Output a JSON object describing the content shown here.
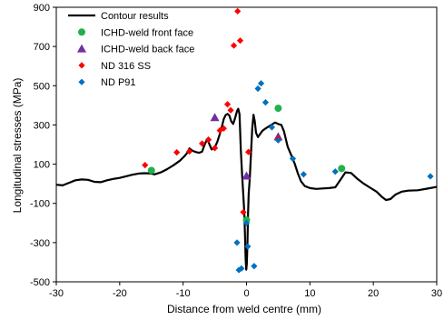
{
  "chart_data": {
    "type": "scatter",
    "xlabel": "Distance from weld centre (mm)",
    "ylabel": "Longitudinal stresses (MPa)",
    "xlim": [
      -30,
      30
    ],
    "ylim": [
      -500,
      900
    ],
    "x_ticks": [
      -30,
      -20,
      -10,
      0,
      10,
      20,
      30
    ],
    "y_ticks": [
      -500,
      -300,
      -100,
      100,
      300,
      500,
      700,
      900
    ],
    "grid": false,
    "legend_position": "top-left",
    "series": [
      {
        "name": "Contour results",
        "kind": "line",
        "color": "#000000",
        "points": [
          [
            -30,
            -5
          ],
          [
            -29,
            -8
          ],
          [
            -28,
            5
          ],
          [
            -27,
            18
          ],
          [
            -26,
            22
          ],
          [
            -25,
            20
          ],
          [
            -24,
            10
          ],
          [
            -23,
            8
          ],
          [
            -22,
            18
          ],
          [
            -21,
            25
          ],
          [
            -20,
            30
          ],
          [
            -19,
            38
          ],
          [
            -18,
            46
          ],
          [
            -17,
            52
          ],
          [
            -16,
            54
          ],
          [
            -15,
            52
          ],
          [
            -14.5,
            48
          ],
          [
            -13.5,
            58
          ],
          [
            -12.5,
            75
          ],
          [
            -11.5,
            95
          ],
          [
            -10.5,
            118
          ],
          [
            -9.8,
            140
          ],
          [
            -9.3,
            160
          ],
          [
            -9.0,
            180
          ],
          [
            -8.5,
            168
          ],
          [
            -8.0,
            162
          ],
          [
            -7.5,
            158
          ],
          [
            -7.0,
            164
          ],
          [
            -6.6,
            200
          ],
          [
            -6.2,
            228
          ],
          [
            -5.9,
            205
          ],
          [
            -5.5,
            175
          ],
          [
            -5.0,
            185
          ],
          [
            -4.6,
            215
          ],
          [
            -4.2,
            255
          ],
          [
            -3.9,
            290
          ],
          [
            -3.6,
            330
          ],
          [
            -3.3,
            350
          ],
          [
            -3.0,
            356
          ],
          [
            -2.7,
            348
          ],
          [
            -2.4,
            318
          ],
          [
            -2.1,
            305
          ],
          [
            -1.8,
            335
          ],
          [
            -1.5,
            370
          ],
          [
            -1.3,
            382
          ],
          [
            -1.1,
            355
          ],
          [
            -0.9,
            175
          ],
          [
            -0.7,
            50
          ],
          [
            -0.5,
            -60
          ],
          [
            -0.35,
            -150
          ],
          [
            -0.25,
            -260
          ],
          [
            -0.15,
            -380
          ],
          [
            -0.05,
            -438
          ],
          [
            0.05,
            -410
          ],
          [
            0.15,
            -310
          ],
          [
            0.25,
            -150
          ],
          [
            0.35,
            -50
          ],
          [
            0.5,
            20
          ],
          [
            0.7,
            150
          ],
          [
            0.9,
            282
          ],
          [
            1.1,
            352
          ],
          [
            1.3,
            318
          ],
          [
            1.5,
            260
          ],
          [
            1.8,
            238
          ],
          [
            2.1,
            252
          ],
          [
            2.5,
            270
          ],
          [
            3.0,
            282
          ],
          [
            3.5,
            292
          ],
          [
            4.0,
            302
          ],
          [
            4.5,
            312
          ],
          [
            5.0,
            305
          ],
          [
            5.5,
            300
          ],
          [
            5.9,
            268
          ],
          [
            6.2,
            228
          ],
          [
            6.5,
            188
          ],
          [
            7.0,
            150
          ],
          [
            7.6,
            102
          ],
          [
            8.1,
            52
          ],
          [
            8.6,
            12
          ],
          [
            9.2,
            -12
          ],
          [
            10,
            -22
          ],
          [
            11,
            -26
          ],
          [
            12,
            -24
          ],
          [
            13,
            -22
          ],
          [
            14,
            -18
          ],
          [
            15,
            30
          ],
          [
            15.6,
            58
          ],
          [
            16.5,
            55
          ],
          [
            17.5,
            25
          ],
          [
            18.5,
            0
          ],
          [
            19.5,
            -20
          ],
          [
            20.5,
            -40
          ],
          [
            21.3,
            -65
          ],
          [
            22,
            -83
          ],
          [
            22.7,
            -78
          ],
          [
            23.5,
            -55
          ],
          [
            24.5,
            -40
          ],
          [
            25.5,
            -35
          ],
          [
            27,
            -33
          ],
          [
            28.5,
            -25
          ],
          [
            30,
            -16
          ]
        ]
      },
      {
        "name": "ICHD-weld front face",
        "kind": "marker",
        "marker": "circle",
        "color": "#22b14c",
        "points": [
          [
            -15,
            68
          ],
          [
            5,
            385
          ],
          [
            15,
            78
          ],
          [
            0,
            -185
          ]
        ]
      },
      {
        "name": "ICHD-weld back face",
        "kind": "marker",
        "marker": "triangle",
        "color": "#7030a0",
        "points": [
          [
            -5,
            338
          ],
          [
            0,
            40
          ],
          [
            5,
            240
          ]
        ]
      },
      {
        "name": "ND 316 SS",
        "kind": "marker",
        "marker": "diamond",
        "color": "#ff0000",
        "points": [
          [
            -16,
            95
          ],
          [
            -11,
            160
          ],
          [
            -9,
            165
          ],
          [
            -7,
            205
          ],
          [
            -6,
            225
          ],
          [
            -5,
            182
          ],
          [
            -4.2,
            272
          ],
          [
            -3.6,
            282
          ],
          [
            -3,
            405
          ],
          [
            -2.5,
            375
          ],
          [
            -2,
            705
          ],
          [
            -1.4,
            880
          ],
          [
            -1,
            730
          ],
          [
            -0.5,
            -145
          ],
          [
            0.3,
            162
          ],
          [
            5,
            230
          ]
        ]
      },
      {
        "name": "ND P91",
        "kind": "marker",
        "marker": "diamond",
        "color": "#0070c0",
        "points": [
          [
            -1.2,
            -440
          ],
          [
            -0.8,
            -432
          ],
          [
            -1.5,
            -300
          ],
          [
            0,
            -200
          ],
          [
            0.2,
            -320
          ],
          [
            1.2,
            -420
          ],
          [
            1.8,
            485
          ],
          [
            2.3,
            512
          ],
          [
            3,
            415
          ],
          [
            4,
            288
          ],
          [
            5,
            222
          ],
          [
            7.3,
            128
          ],
          [
            9,
            48
          ],
          [
            14,
            62
          ],
          [
            29,
            38
          ]
        ]
      }
    ]
  }
}
